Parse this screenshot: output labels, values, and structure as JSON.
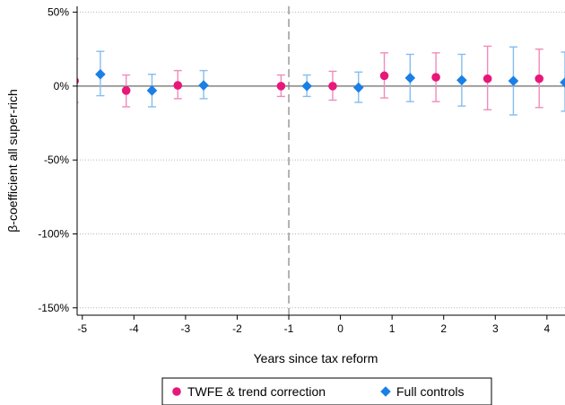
{
  "chart_data": {
    "type": "scatter",
    "xlabel": "Years since tax reform",
    "ylabel": "β-coefficient all super-rich",
    "x_ticks": [
      "-5",
      "-4",
      "-3",
      "-2",
      "-1",
      "0",
      "1",
      "2",
      "3",
      "4"
    ],
    "y_ticks": [
      "50%",
      "0%",
      "-50%",
      "-100%",
      "-150%"
    ],
    "y_tick_values": [
      50,
      0,
      -50,
      -100,
      -150
    ],
    "ylim": [
      -155,
      54
    ],
    "xlim": [
      -5.1,
      4.35
    ],
    "reference_line_x": -1,
    "reference_line_y": 0,
    "grid": "horizontal dotted",
    "legend_placement": "bottom",
    "series": [
      {
        "name": "TWFE & trend correction",
        "marker": "circle",
        "color": "#e8177a",
        "ci_color": "#f08bbb",
        "x_offset": -0.15,
        "points": [
          {
            "x": -5,
            "y": 3.5,
            "lo": -11,
            "hi": 18.5
          },
          {
            "x": -4,
            "y": -3,
            "lo": -14,
            "hi": 7.5
          },
          {
            "x": -3,
            "y": 0.5,
            "lo": -8.5,
            "hi": 10.5
          },
          {
            "x": -1,
            "y": 0,
            "lo": -7,
            "hi": 7.5
          },
          {
            "x": 0,
            "y": 0,
            "lo": -9.5,
            "hi": 10
          },
          {
            "x": 1,
            "y": 7,
            "lo": -8,
            "hi": 22.5
          },
          {
            "x": 2,
            "y": 6,
            "lo": -10.5,
            "hi": 22.5
          },
          {
            "x": 3,
            "y": 5,
            "lo": -16,
            "hi": 27
          },
          {
            "x": 4,
            "y": 5,
            "lo": -14.5,
            "hi": 25
          }
        ]
      },
      {
        "name": "Full controls",
        "marker": "diamond",
        "color": "#1a7fe6",
        "ci_color": "#85bdf0",
        "x_offset": 0.35,
        "points": [
          {
            "x": -5,
            "y": 8,
            "lo": -6.5,
            "hi": 23.5
          },
          {
            "x": -4,
            "y": -3,
            "lo": -14,
            "hi": 8
          },
          {
            "x": -3,
            "y": 0.5,
            "lo": -8.5,
            "hi": 10.5
          },
          {
            "x": -1,
            "y": 0,
            "lo": -7,
            "hi": 7.5
          },
          {
            "x": 0,
            "y": -1,
            "lo": -11,
            "hi": 9.5
          },
          {
            "x": 1,
            "y": 5.5,
            "lo": -10.5,
            "hi": 21.5
          },
          {
            "x": 2,
            "y": 4,
            "lo": -13.5,
            "hi": 21.5
          },
          {
            "x": 3,
            "y": 3.5,
            "lo": -19.5,
            "hi": 26.5
          },
          {
            "x": 4,
            "y": 2.5,
            "lo": -17,
            "hi": 23
          }
        ]
      }
    ]
  }
}
